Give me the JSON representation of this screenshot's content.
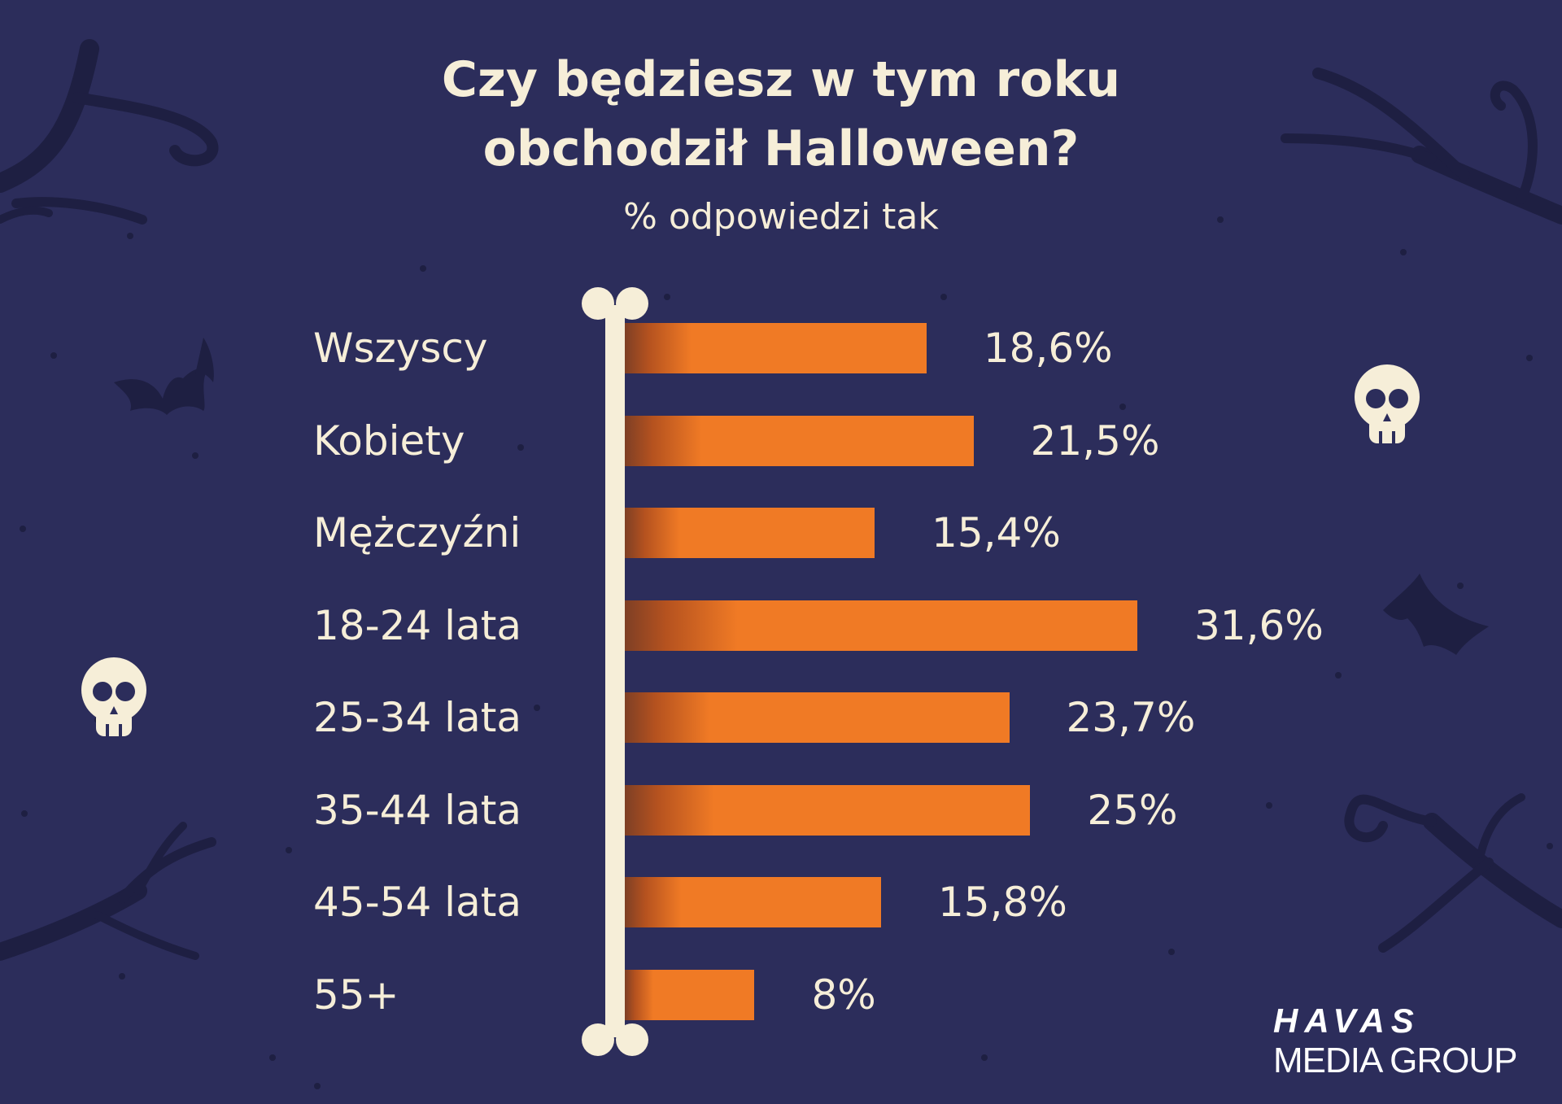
{
  "colors": {
    "background": "#2c2d5b",
    "text": "#f6eed8",
    "bar": "#f07a25",
    "bar_dark": "#7e3f25",
    "decor": "#1e1f42",
    "bone": "#f6eed8"
  },
  "chart_data": {
    "type": "bar",
    "orientation": "horizontal",
    "title_lines": [
      "Czy będziesz w tym roku",
      "obchodził Halloween?"
    ],
    "subtitle": "% odpowiedzi tak",
    "xlabel": "",
    "ylabel": "",
    "grid": false,
    "xlim": [
      0,
      40
    ],
    "categories": [
      "Wszyscy",
      "Kobiety",
      "Mężczyźni",
      "18-24 lata",
      "25-34 lata",
      "35-44 lata",
      "45-54 lata",
      "55+"
    ],
    "values": [
      18.6,
      21.5,
      15.4,
      31.6,
      23.7,
      25,
      15.8,
      8
    ],
    "value_labels": [
      "18,6%",
      "21,5%",
      "15,4%",
      "31,6%",
      "23,7%",
      "25%",
      "15,8%",
      "8%"
    ]
  },
  "brand": {
    "logo_top": "HAVAS",
    "logo_bottom": "MEDIA GROUP"
  },
  "decorations": [
    "tree-branch-icon",
    "bat-icon",
    "skull-icon",
    "bone-axis-icon"
  ]
}
